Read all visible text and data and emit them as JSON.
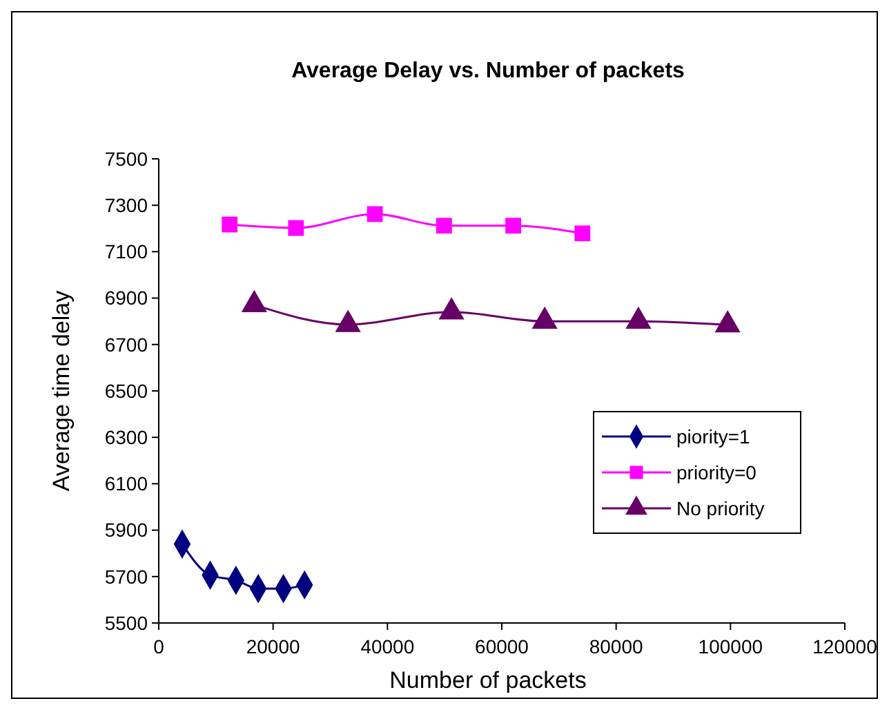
{
  "chart_data": {
    "type": "line",
    "title": "Average Delay vs. Number of packets",
    "xlabel": "Number of packets",
    "ylabel": "Average time delay",
    "xlim": [
      0,
      120000
    ],
    "xticks": [
      0,
      20000,
      40000,
      60000,
      80000,
      100000,
      120000
    ],
    "ylim": [
      5500,
      7500
    ],
    "yticks": [
      5500,
      5700,
      5900,
      6100,
      6300,
      6500,
      6700,
      6900,
      7100,
      7300,
      7500
    ],
    "grid": false,
    "legend": "right",
    "line_style": "solid",
    "series": [
      {
        "name": "piority=1",
        "color": "#000080",
        "marker": "diamond",
        "x": [
          4100,
          9000,
          13500,
          17400,
          21800,
          25500
        ],
        "values": [
          5840,
          5706,
          5684,
          5648,
          5648,
          5664
        ]
      },
      {
        "name": "priority=0",
        "color": "#ff00ff",
        "marker": "square",
        "x": [
          12400,
          24000,
          37800,
          49900,
          62000,
          74100
        ],
        "values": [
          7217,
          7202,
          7262,
          7212,
          7212,
          7179
        ]
      },
      {
        "name": "No priority",
        "color": "#660066",
        "marker": "triangle",
        "x": [
          16700,
          33100,
          51200,
          67500,
          83900,
          99500
        ],
        "values": [
          6871,
          6786,
          6840,
          6800,
          6800,
          6784
        ]
      }
    ]
  }
}
